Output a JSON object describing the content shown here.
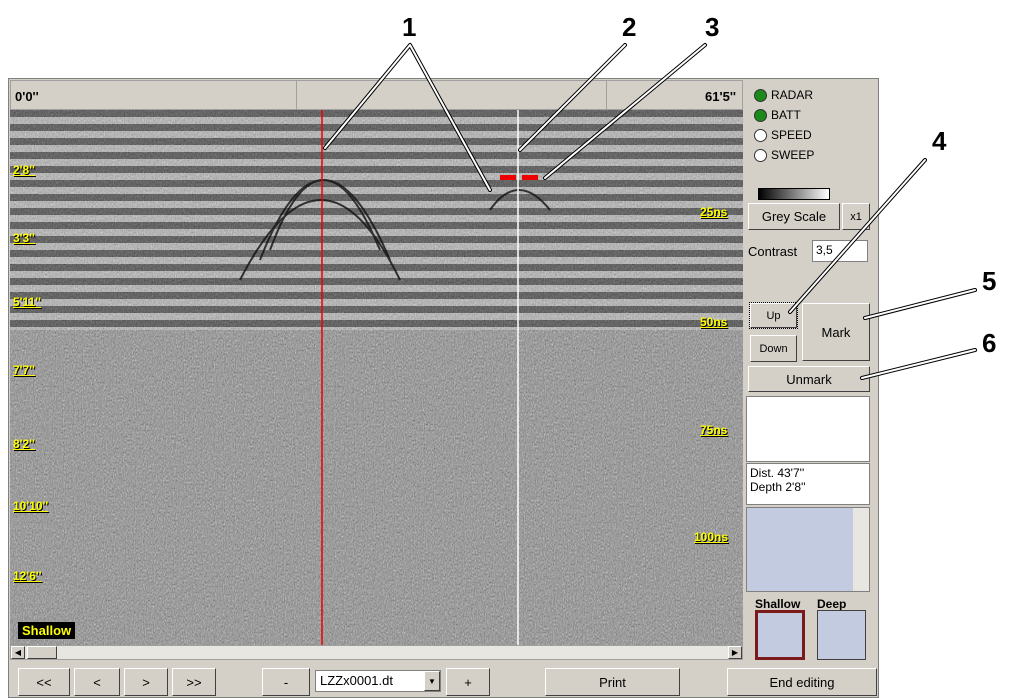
{
  "header": {
    "start": "0'0''",
    "end": "61'5''"
  },
  "depth_labels": [
    "2'8''",
    "3'3''",
    "5'11''",
    "7'7''",
    "8'2''",
    "10'10''",
    "12'6''"
  ],
  "time_labels": [
    "25ns",
    "50ns",
    "75ns",
    "100ns"
  ],
  "mode_label": "Shallow",
  "indicators": [
    {
      "label": "RADAR",
      "active": true
    },
    {
      "label": "BATT",
      "active": true
    },
    {
      "label": "SPEED",
      "active": false
    },
    {
      "label": "SWEEP",
      "active": false
    }
  ],
  "controls": {
    "grey_scale": "Grey Scale",
    "zoom": "x1",
    "contrast_label": "Contrast",
    "contrast_value": "3,5",
    "up": "Up",
    "down": "Down",
    "mark": "Mark",
    "unmark": "Unmark"
  },
  "readout": {
    "distance": "Dist. 43'7''",
    "depth": "Depth 2'8''"
  },
  "view": {
    "shallow": "Shallow",
    "deep": "Deep"
  },
  "toolbar": {
    "first": "<<",
    "previous": "<",
    "next": ">",
    "last": ">>",
    "minus": "-",
    "file": "LZZx0001.dt",
    "plus": "+",
    "print": "Print",
    "end": "End editing"
  },
  "callouts": [
    "1",
    "2",
    "3",
    "4",
    "5",
    "6"
  ]
}
